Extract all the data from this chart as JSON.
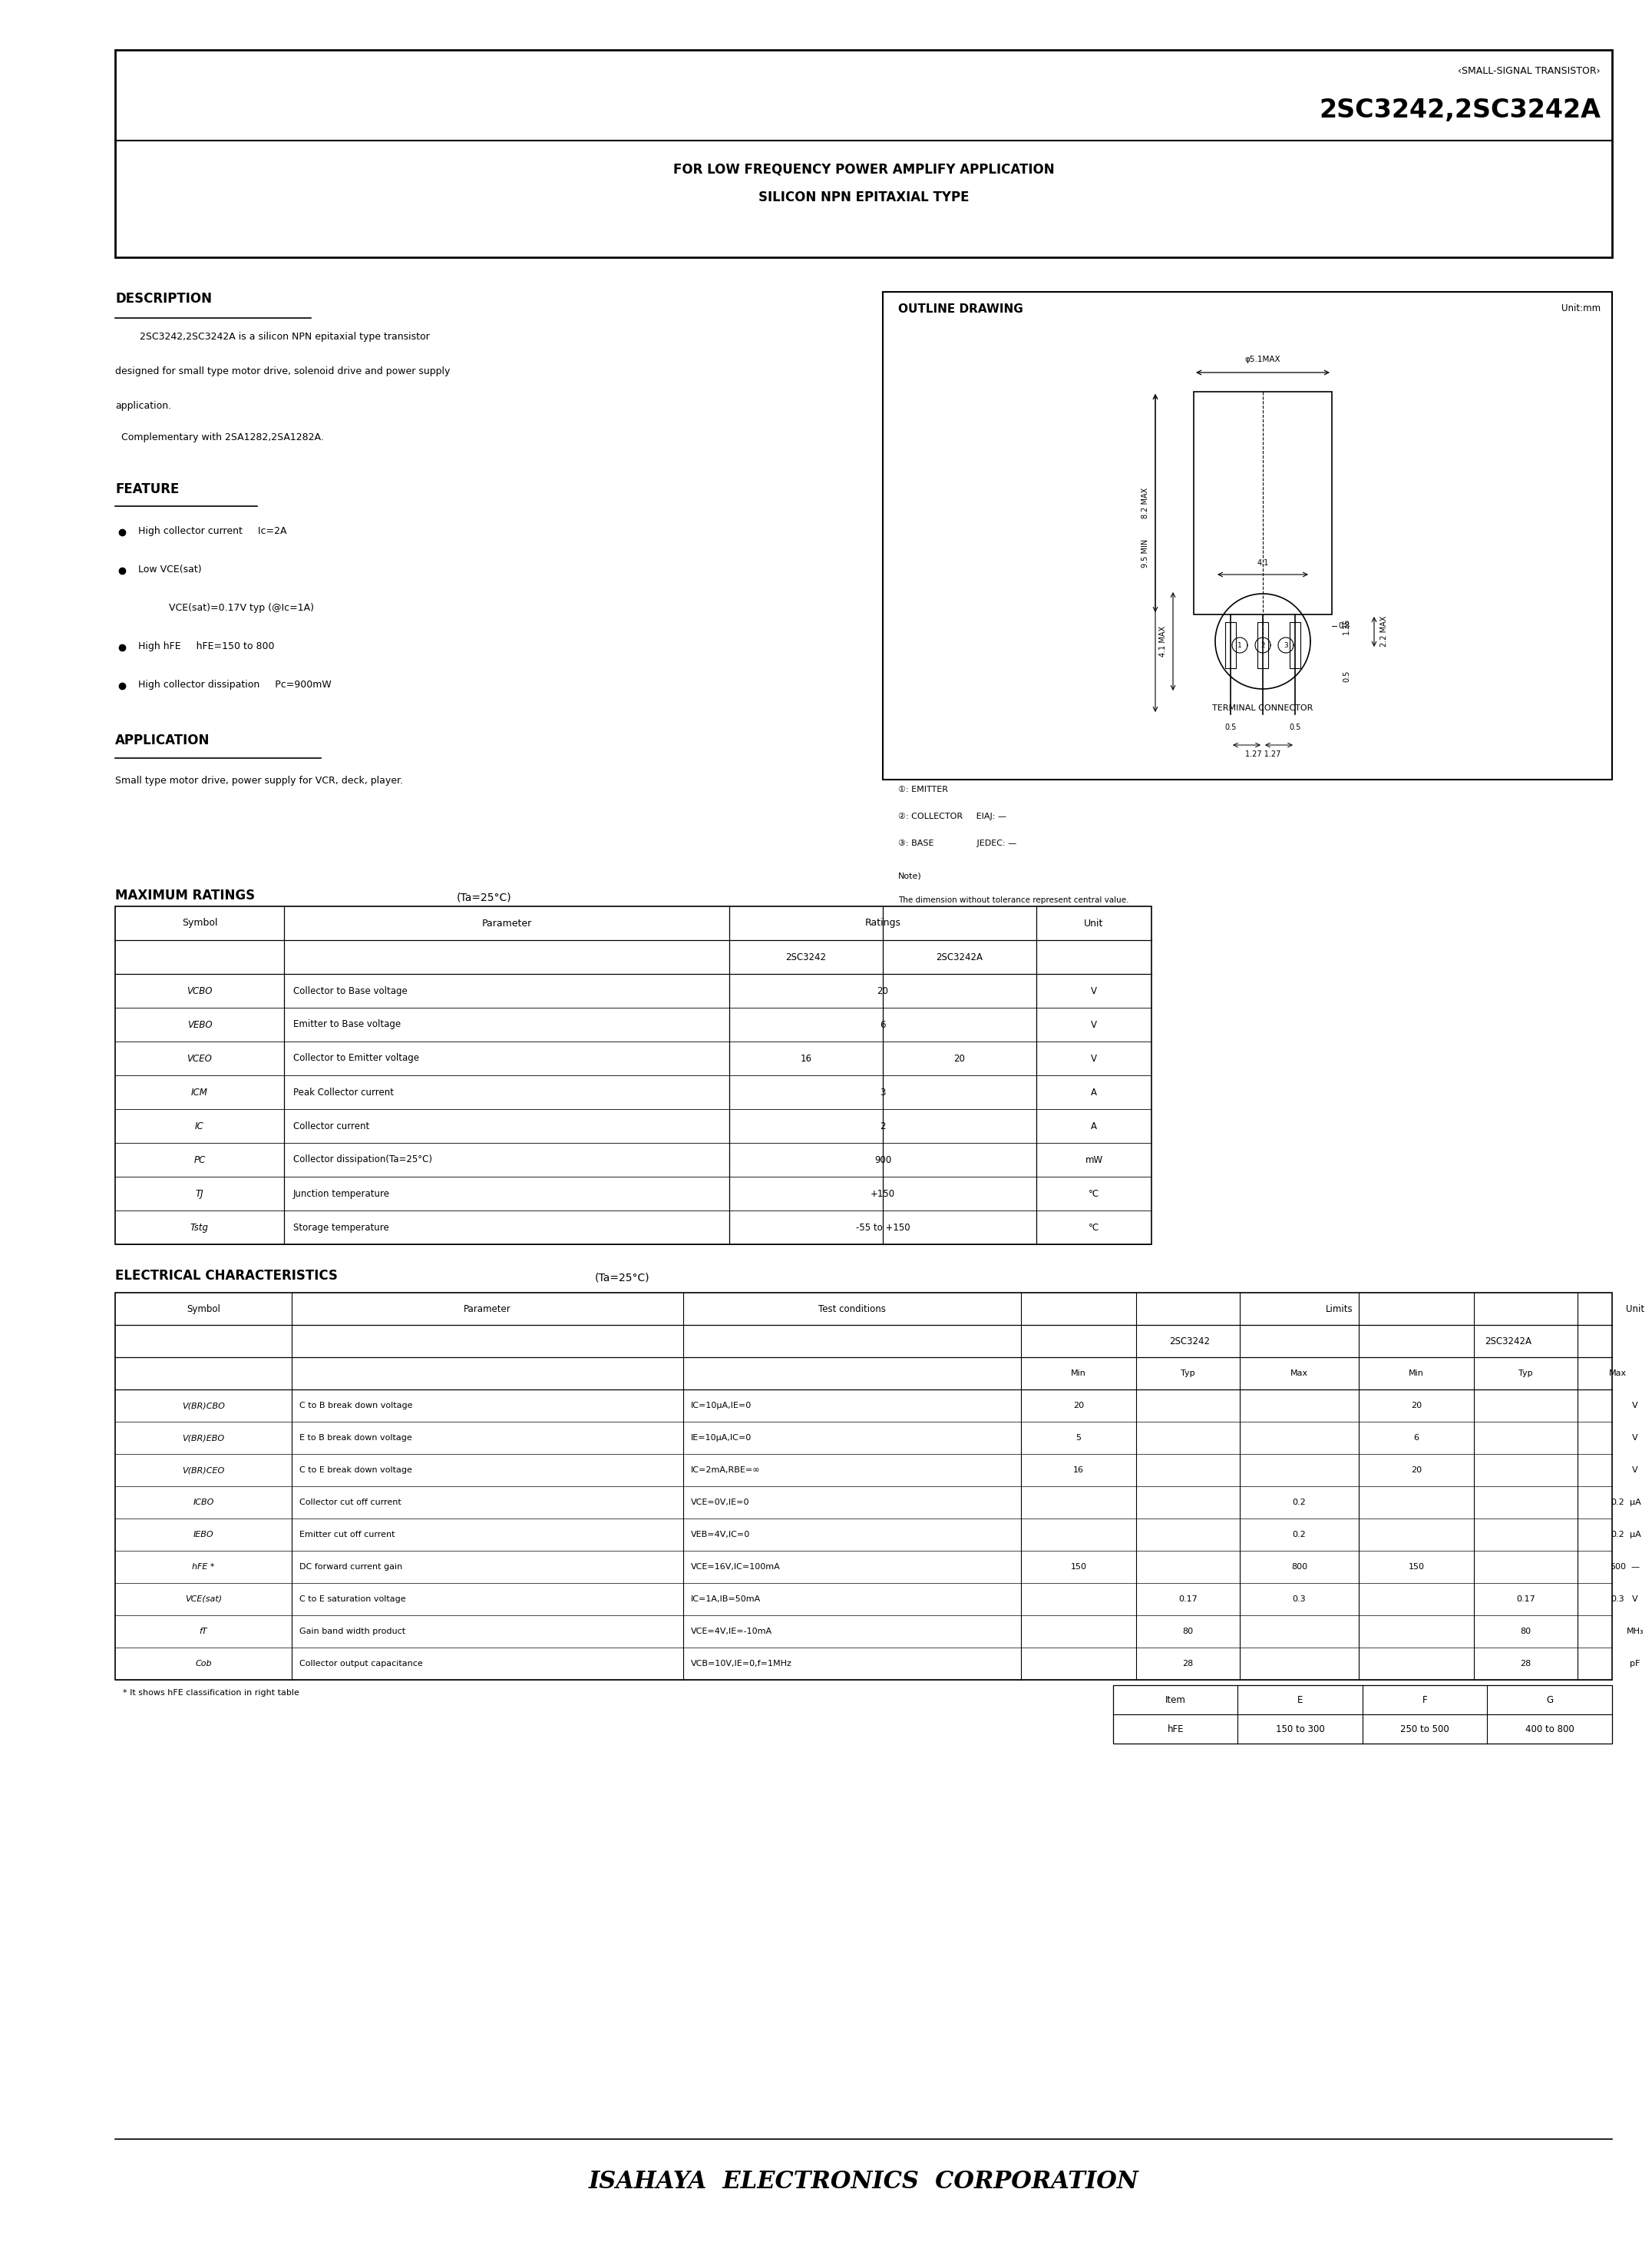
{
  "bg_color": "#ffffff",
  "title_small": "‹SMALL-SIGNAL TRANSISTOR›",
  "title_main": "2SC3242,2SC3242A",
  "title_sub1": "FOR LOW FREQUENCY POWER AMPLIFY APPLICATION",
  "title_sub2": "SILICON NPN EPITAXIAL TYPE",
  "desc_title": "DESCRIPTION",
  "desc_line1": "        2SC3242,2SC3242A is a silicon NPN epitaxial type transistor",
  "desc_line2": "designed for small type motor drive, solenoid drive and power supply",
  "desc_line3": "application.",
  "desc_comp": "  Complementary with 2SA1282,2SA1282A.",
  "feat_title": "FEATURE",
  "feat_items": [
    [
      "High collector current     Ic=2A",
      false
    ],
    [
      "Low VCE(sat)",
      false
    ],
    [
      "VCE(sat)=0.17V typ (@Ic=1A)",
      true
    ],
    [
      "High hFE     hFE=150 to 800",
      false
    ],
    [
      "High collector dissipation     Pc=900mW",
      false
    ]
  ],
  "app_title": "APPLICATION",
  "app_body": "Small type motor drive, power supply for VCR, deck, player.",
  "outline_title": "OUTLINE DRAWING",
  "outline_unit": "Unit:mm",
  "max_ratings_title": "MAXIMUM RATINGS",
  "max_ratings_title2": "(Ta=25°C)",
  "max_ratings_rows": [
    [
      "VCBO",
      "Collector to Base voltage",
      "20",
      "20",
      "V"
    ],
    [
      "VEBO",
      "Emitter to Base voltage",
      "6",
      "6",
      "V"
    ],
    [
      "VCEO",
      "Collector to Emitter voltage",
      "16",
      "20",
      "V"
    ],
    [
      "ICM",
      "Peak Collector current",
      "3",
      "",
      "A"
    ],
    [
      "IC",
      "Collector current",
      "2",
      "",
      "A"
    ],
    [
      "PC",
      "Collector dissipation(Ta=25°C)",
      "900",
      "",
      "mW"
    ],
    [
      "TJ",
      "Junction temperature",
      "+150",
      "",
      "°C"
    ],
    [
      "Tstg",
      "Storage temperature",
      "-55 to +150",
      "",
      "°C"
    ]
  ],
  "elec_char_title": "ELECTRICAL CHARACTERISTICS",
  "elec_char_title2": "(Ta=25°C)",
  "elec_rows": [
    [
      "V(BR)CBO",
      "C to B break down voltage",
      "IC=10μA,IE=0",
      "20",
      "",
      "",
      "20",
      "",
      "",
      "V"
    ],
    [
      "V(BR)EBO",
      "E to B break down voltage",
      "IE=10μA,IC=0",
      "5",
      "",
      "",
      "6",
      "",
      "",
      "V"
    ],
    [
      "V(BR)CEO",
      "C to E break down voltage",
      "IC=2mA,RBE=∞",
      "16",
      "",
      "",
      "20",
      "",
      "",
      "V"
    ],
    [
      "ICBO",
      "Collector cut off current",
      "VCE=0V,IE=0",
      "",
      "",
      "0.2",
      "",
      "",
      "0.2",
      "μA"
    ],
    [
      "IEBO",
      "Emitter cut off current",
      "VEB=4V,IC=0",
      "",
      "",
      "0.2",
      "",
      "",
      "0.2",
      "μA"
    ],
    [
      "hFE *",
      "DC forward current gain",
      "VCE=16V,IC=100mA",
      "150",
      "",
      "800",
      "150",
      "",
      "500",
      "—"
    ],
    [
      "VCE(sat)",
      "C to E saturation voltage",
      "IC=1A,IB=50mA",
      "",
      "0.17",
      "0.3",
      "",
      "0.17",
      "0.3",
      "V"
    ],
    [
      "fT",
      "Gain band width product",
      "VCE=4V,IE=-10mA",
      "",
      "80",
      "",
      "",
      "80",
      "",
      "MH₃"
    ],
    [
      "Cob",
      "Collector output capacitance",
      "VCB=10V,IE=0,f=1MHz",
      "",
      "28",
      "",
      "",
      "28",
      "",
      "pF"
    ]
  ],
  "hfe_note": "* It shows hFE classification in right table",
  "hfe_table_headers": [
    "Item",
    "E",
    "F",
    "G"
  ],
  "hfe_table_row": [
    "hFE",
    "150 to 300",
    "250 to 500",
    "400 to 800"
  ],
  "footer": "ISAHAYA  ELECTRONICS  CORPORATION"
}
